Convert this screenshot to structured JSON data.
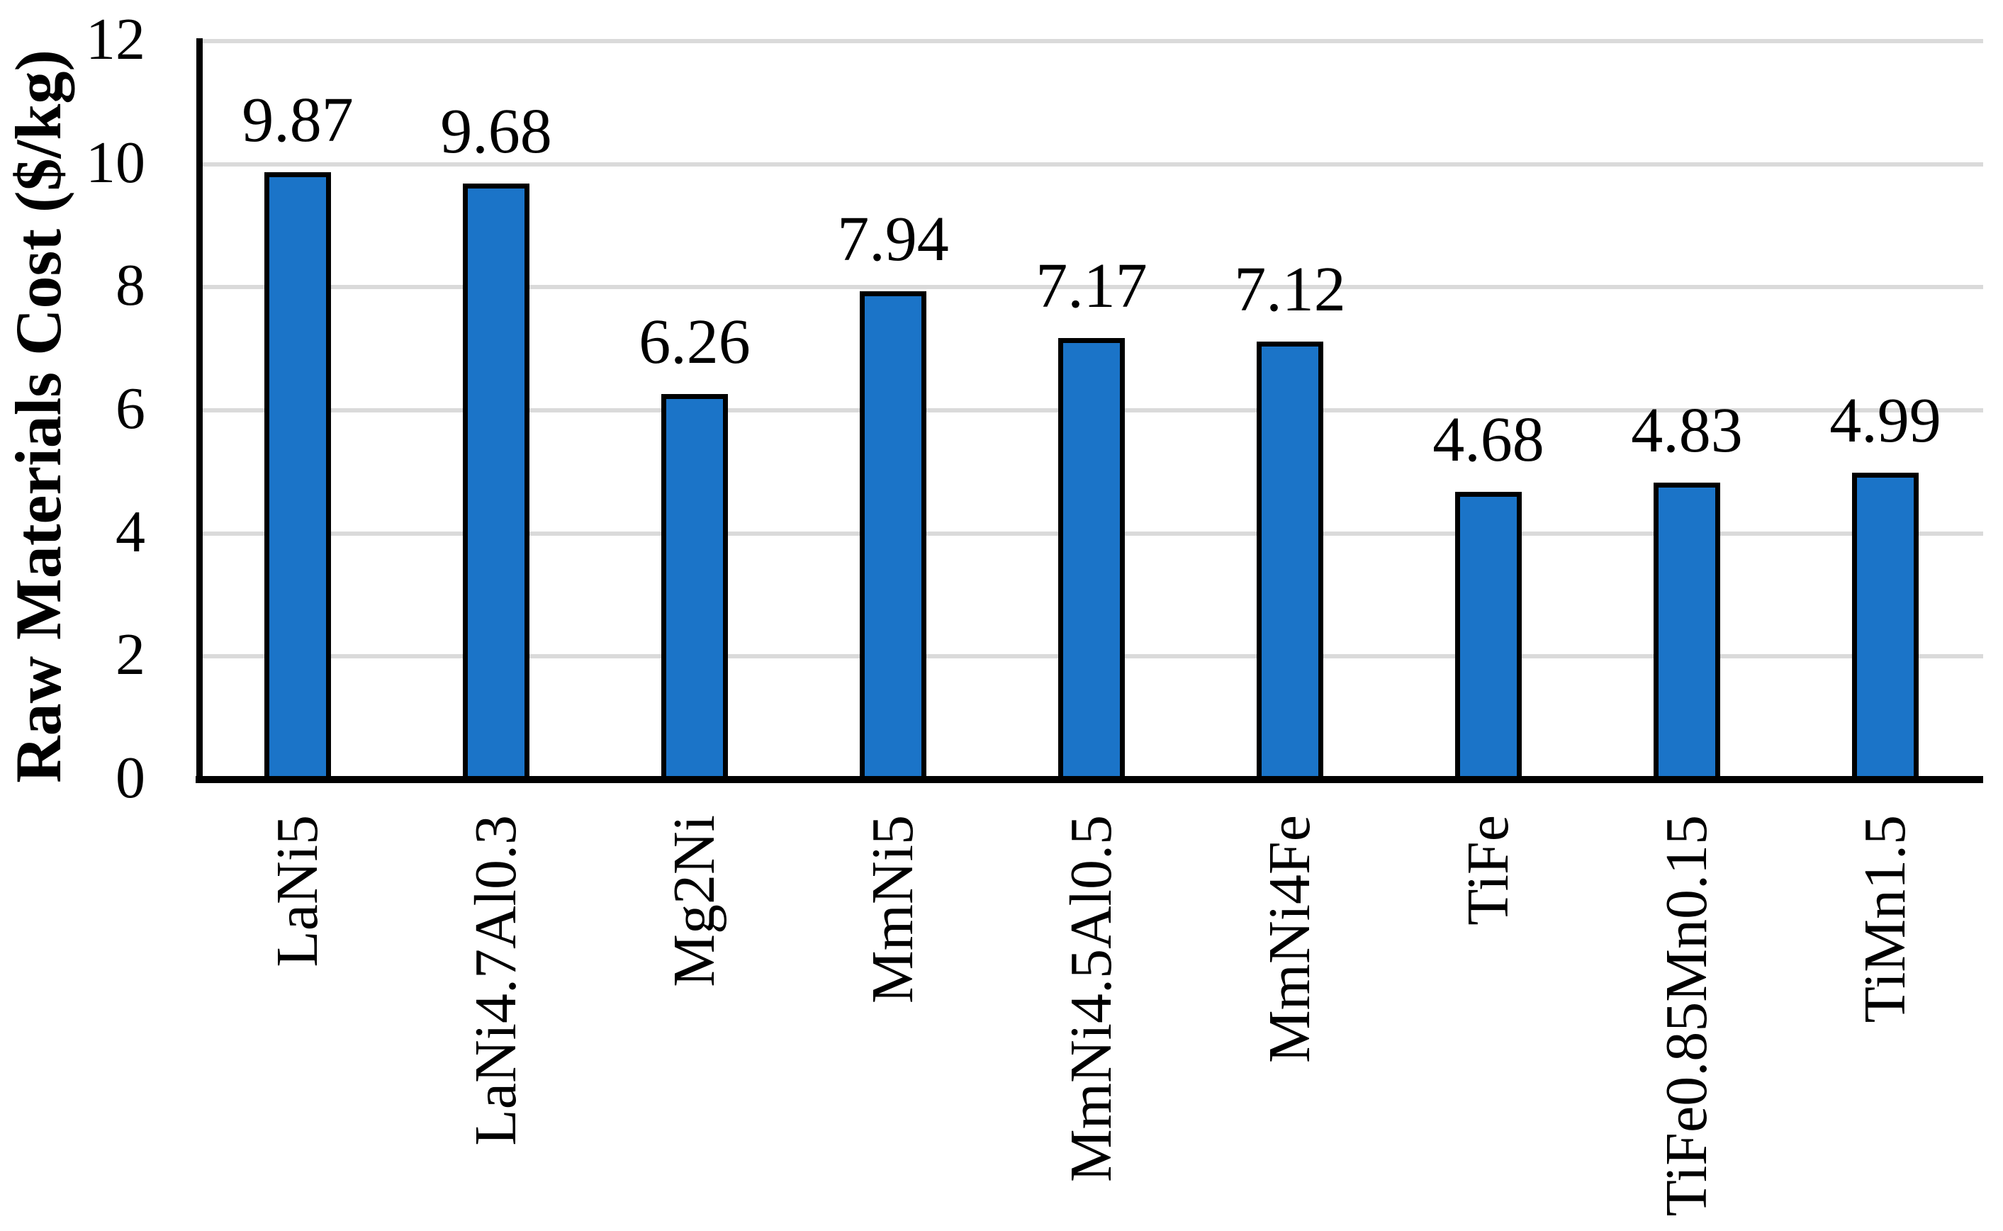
{
  "chart_data": {
    "type": "bar",
    "title": "",
    "xlabel": "",
    "ylabel": "Raw Materials Cost ($/kg)",
    "categories": [
      "LaNi5",
      "LaNi4.7Al0.3",
      "Mg2Ni",
      "MmNi5",
      "MmNi4.5Al0.5",
      "MmNi4Fe",
      "TiFe",
      "TiFe0.85Mn0.15",
      "TiMn1.5"
    ],
    "values": [
      9.87,
      9.68,
      6.26,
      7.94,
      7.17,
      7.12,
      4.68,
      4.83,
      4.99
    ],
    "value_labels": [
      "9.87",
      "9.68",
      "6.26",
      "7.94",
      "7.17",
      "7.12",
      "4.68",
      "4.83",
      "4.99"
    ],
    "y_ticks": [
      0,
      2,
      4,
      6,
      8,
      10,
      12
    ],
    "ylim": [
      0,
      12
    ],
    "grid": "horizontal-only",
    "legend_position": "none",
    "colors": {
      "bar_fill": "#1B74C8",
      "bar_border": "#000000",
      "gridline": "#DADADA",
      "axis": "#000000",
      "background": "#FFFFFF"
    }
  }
}
